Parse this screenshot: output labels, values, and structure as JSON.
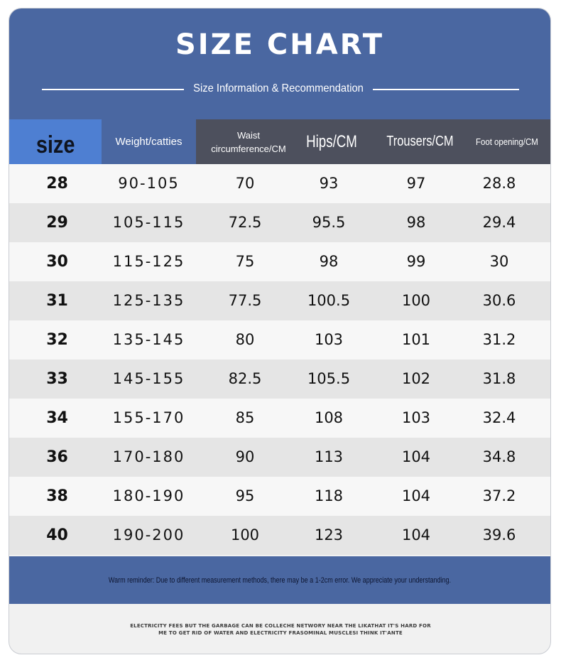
{
  "header": {
    "title": "SIZE CHART",
    "subtitle": "Size Information & Recommendation"
  },
  "table": {
    "columns": [
      "size",
      "Weight/catties",
      "Waist circumference/CM",
      "Hips/CM",
      "Trousers/CM",
      "Foot opening/CM"
    ],
    "waist_line1": "Waist",
    "waist_line2": "circumference/CM",
    "rows": [
      {
        "size": "28",
        "weight": "90-105",
        "waist": "70",
        "hips": "93",
        "trousers": "97",
        "foot": "28.8"
      },
      {
        "size": "29",
        "weight": "105-115",
        "waist": "72.5",
        "hips": "95.5",
        "trousers": "98",
        "foot": "29.4"
      },
      {
        "size": "30",
        "weight": "115-125",
        "waist": "75",
        "hips": "98",
        "trousers": "99",
        "foot": "30"
      },
      {
        "size": "31",
        "weight": "125-135",
        "waist": "77.5",
        "hips": "100.5",
        "trousers": "100",
        "foot": "30.6"
      },
      {
        "size": "32",
        "weight": "135-145",
        "waist": "80",
        "hips": "103",
        "trousers": "101",
        "foot": "31.2"
      },
      {
        "size": "33",
        "weight": "145-155",
        "waist": "82.5",
        "hips": "105.5",
        "trousers": "102",
        "foot": "31.8"
      },
      {
        "size": "34",
        "weight": "155-170",
        "waist": "85",
        "hips": "108",
        "trousers": "103",
        "foot": "32.4"
      },
      {
        "size": "36",
        "weight": "170-180",
        "waist": "90",
        "hips": "113",
        "trousers": "104",
        "foot": "34.8"
      },
      {
        "size": "38",
        "weight": "180-190",
        "waist": "95",
        "hips": "118",
        "trousers": "104",
        "foot": "37.2"
      },
      {
        "size": "40",
        "weight": "190-200",
        "waist": "100",
        "hips": "123",
        "trousers": "104",
        "foot": "39.6"
      }
    ]
  },
  "footer": {
    "reminder": "Warm reminder: Due to different measurement methods, there may be a 1-2cm error. We appreciate your understanding.",
    "note_line1": "ELECTRICITY FEES BUT THE GARBAGE CAN BE COLLECHE NETWORY NEAR THE LIKATHAT IT'S HARD FOR",
    "note_line2": "ME TO GET RID OF WATER AND ELECTRICITY FRASOMINAL MUSCLESI THINK IT'ANTE"
  },
  "colors": {
    "header_blue": "#4a67a1",
    "size_header_blue": "#4e7fd2",
    "header_gray": "#4d505d",
    "row_light": "#f7f7f7",
    "row_dark": "#e5e5e5"
  }
}
